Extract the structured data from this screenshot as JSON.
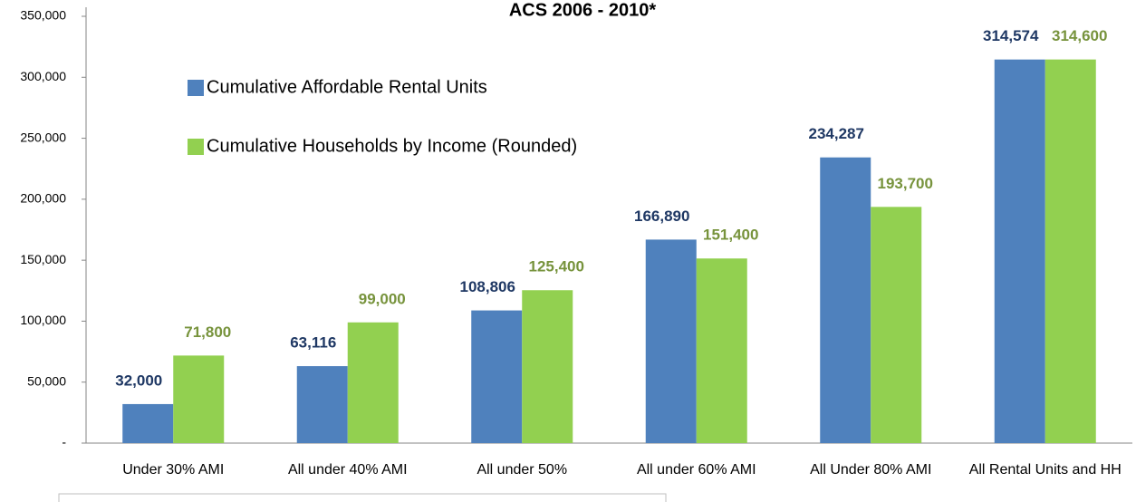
{
  "chart_data": {
    "type": "bar",
    "title": "ACS 2006 - 2010*",
    "categories": [
      "Under 30% AMI",
      "All under 40% AMI",
      "All under 50%",
      "All under 60% AMI",
      "All Under 80% AMI",
      "All Rental Units and HH"
    ],
    "series": [
      {
        "name": "Cumulative Affordable Rental Units",
        "color": "#4f81bd",
        "label_color": "#1f3864",
        "values": [
          32000,
          63116,
          108806,
          166890,
          234287,
          314574
        ],
        "value_labels": [
          "32,000",
          "63,116",
          "108,806",
          "166,890",
          "234,287",
          "314,574"
        ]
      },
      {
        "name": "Cumulative Households by Income (Rounded)",
        "color": "#92d050",
        "label_color": "#77933c",
        "values": [
          71800,
          99000,
          125400,
          151400,
          193700,
          314600
        ],
        "value_labels": [
          "71,800",
          "99,000",
          "125,400",
          "151,400",
          "193,700",
          "314,600"
        ]
      }
    ],
    "ylim": [
      0,
      350000
    ],
    "yticks": [
      {
        "value": 0,
        "label": "-"
      },
      {
        "value": 50000,
        "label": "50,000"
      },
      {
        "value": 100000,
        "label": "100,000"
      },
      {
        "value": 150000,
        "label": "150,000"
      },
      {
        "value": 200000,
        "label": "200,000"
      },
      {
        "value": 250000,
        "label": "250,000"
      },
      {
        "value": 300000,
        "label": "300,000"
      },
      {
        "value": 350000,
        "label": "350,000"
      }
    ],
    "grid": false
  }
}
